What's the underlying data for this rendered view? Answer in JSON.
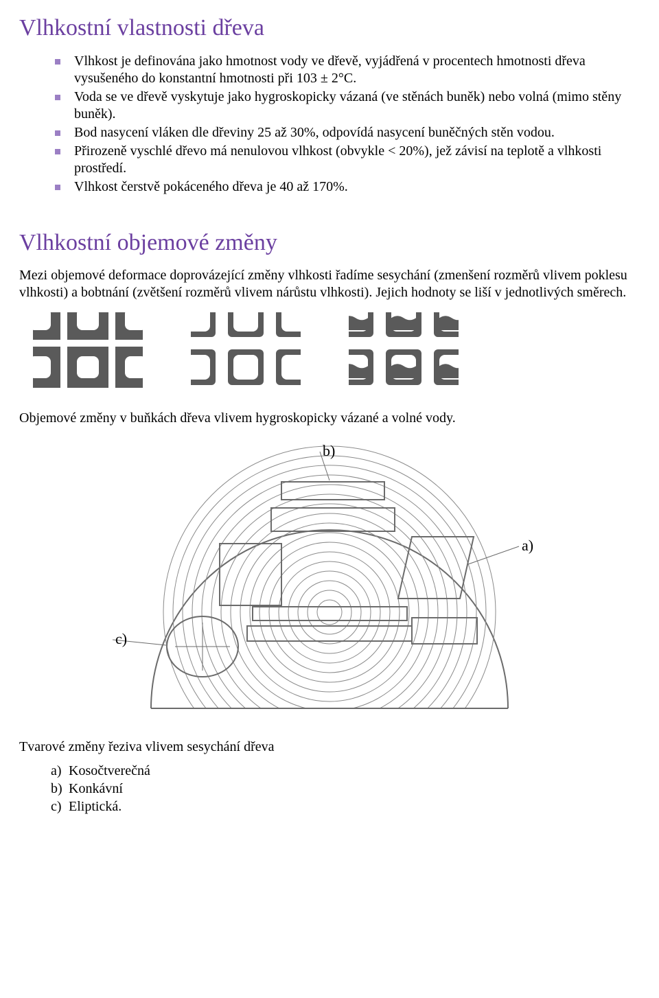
{
  "heading1": "Vlhkostní vlastnosti dřeva",
  "bullets": [
    "Vlhkost je definována jako hmotnost vody ve dřevě, vyjádřená v procentech hmotnosti dřeva vysušeného do konstantní hmotnosti při 103 ± 2°C.",
    "Voda se ve dřevě vyskytuje jako hygroskopicky vázaná (ve stěnách buněk) nebo volná (mimo stěny buněk).",
    "Bod nasycení vláken dle dřeviny 25 až 30%, odpovídá nasycení buněčných stěn vodou.",
    "Přirozeně vyschlé dřevo má nenulovou vlhkost (obvykle < 20%), jež závisí na teplotě a vlhkosti prostředí.",
    "Vlhkost čerstvě pokáceného dřeva je 40 až 170%."
  ],
  "heading2": "Vlhkostní objemové změny",
  "para1": "Mezi objemové deformace doprovázející změny vlhkosti řadíme sesychání (zmenšení rozměrů vlivem poklesu vlhkosti) a bobtnání (zvětšení rozměrů vlivem nárůstu vlhkosti). Jejich hodnoty se liší v jednotlivých směrech.",
  "caption1": "Objemové změny v buňkách dřeva vlivem hygroskopicky vázané a volné vody.",
  "caption2": "Tvarové změny řeziva vlivem sesychání dřeva",
  "legend": [
    {
      "letter": "a)",
      "text": "Kosočtverečná"
    },
    {
      "letter": "b)",
      "text": "Konkávní"
    },
    {
      "letter": "c)",
      "text": "Eliptická."
    }
  ],
  "cell_diagrams": {
    "stroke": "#4a4a4a",
    "fill": "#5a5a5a",
    "background": "#ffffff",
    "states": [
      {
        "wall": 14,
        "gap": 0,
        "water": false
      },
      {
        "wall": 8,
        "gap": 8,
        "water": false
      },
      {
        "wall": 8,
        "gap": 8,
        "water": true
      }
    ]
  },
  "cross_section": {
    "stroke": "#6b6b6b",
    "ring_stroke": "#8a8a8a",
    "label_a": "a)",
    "label_b": "b)",
    "label_c": "c)",
    "label_fontsize": 22,
    "label_color": "#000000"
  },
  "colors": {
    "heading": "#6b3fa0",
    "bullet": "#9b7fc4",
    "text": "#000000",
    "bg": "#ffffff"
  }
}
